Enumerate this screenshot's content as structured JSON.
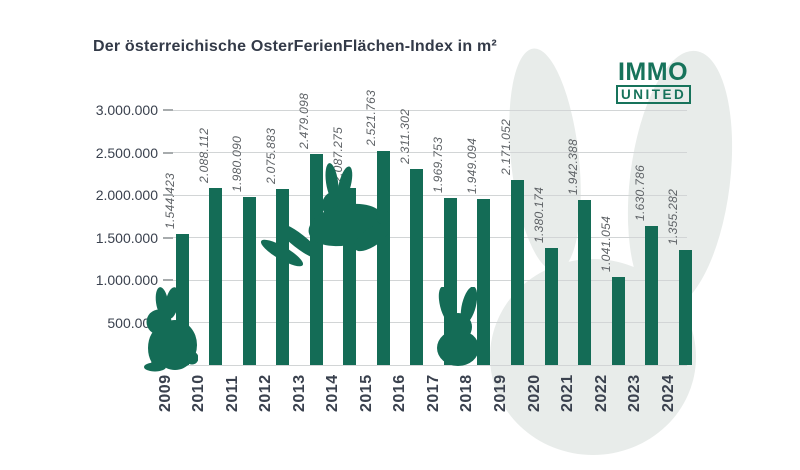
{
  "title": "Der österreichische OsterFerienFlächen-Index in m²",
  "logo": {
    "line1": "IMMO",
    "line2": "UNITED"
  },
  "colors": {
    "bar_green": "#146C56",
    "logo_green": "#17735B",
    "title_navy": "#333A48",
    "axis_label_navy": "#3A414E",
    "value_label_gray": "#5E6266",
    "gridline": "#D2D5D6",
    "tick": "#A7ABAD",
    "bunny_bg": "#E8ECEA"
  },
  "chart_data": {
    "type": "bar",
    "title": "Der österreichische OsterFerienFlächen-Index in m²",
    "xlabel": "",
    "ylabel": "",
    "categories": [
      "2009",
      "2010",
      "2011",
      "2012",
      "2013",
      "2014",
      "2015",
      "2016",
      "2017",
      "2018",
      "2019",
      "2020",
      "2021",
      "2022",
      "2023",
      "2024"
    ],
    "values": [
      1544423,
      2088112,
      1980090,
      2075883,
      2479098,
      2087275,
      2521763,
      2311302,
      1969753,
      1949094,
      2171052,
      1380174,
      1942388,
      1041054,
      1630786,
      1355282
    ],
    "value_labels": [
      "1.544.423",
      "2.088.112",
      "1.980.090",
      "2.075.883",
      "2.479.098",
      "2.087.275",
      "2.521.763",
      "2.311.302",
      "1.969.753",
      "1.949.094",
      "2.171.052",
      "1.380.174",
      "1.942.388",
      "1.041.054",
      "1.630.786",
      "1.355.282"
    ],
    "ylim": [
      0,
      3000000
    ],
    "ytick_interval": 500000,
    "ytick_labels": [
      "0",
      "500.000",
      "1.000.000",
      "1.500.000",
      "2.000.000",
      "2.500.000",
      "3.000.000"
    ],
    "grid": true,
    "legend": "none",
    "bar_color": "#146C56"
  }
}
